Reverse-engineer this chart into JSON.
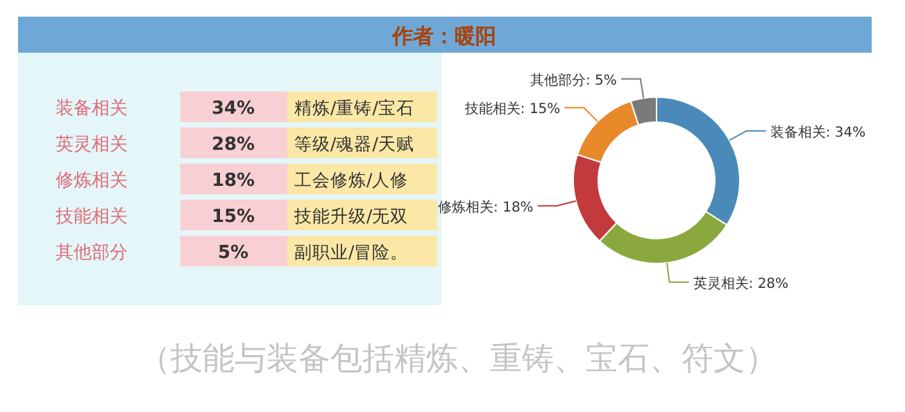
{
  "chart_data": [
    {
      "type": "other",
      "title": "作者：暖阳",
      "annotations": [
        "装备相关",
        "34%",
        "精炼/重铸/宝石",
        "英灵相关",
        "28%",
        "等级/魂器/天赋",
        "修炼相关",
        "18%",
        "工会修炼/人修",
        "技能相关",
        "15%",
        "技能升级/无双",
        "其他部分",
        "5%",
        "副职业/冒险。"
      ]
    },
    {
      "type": "donut",
      "categories": [
        "装备相关",
        "英灵相关",
        "修炼相关",
        "技能相关",
        "其他部分"
      ],
      "values": [
        34,
        28,
        18,
        15,
        5
      ],
      "value_labels": [
        "34%",
        "28%",
        "18%",
        "15%",
        "5%"
      ],
      "colors": [
        "#4a8ab8",
        "#8aa83e",
        "#c23a3c",
        "#e8892a",
        "#7a7a7a"
      ],
      "annotations": [
        "（技能与装备包括精炼、重铸、宝石、符文）"
      ]
    }
  ]
}
